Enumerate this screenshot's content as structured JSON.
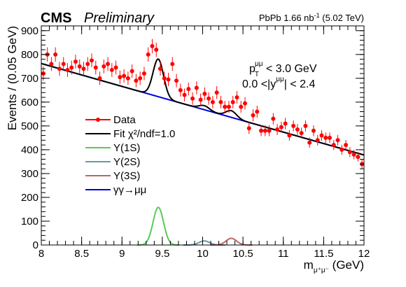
{
  "header": {
    "experiment": "CMS",
    "status": "Preliminary",
    "lumi_prefix": "PbPb 1.66 nb",
    "lumi_exp": "-1",
    "lumi_suffix": " (5.02 TeV)"
  },
  "cuts": {
    "line1_main": "p",
    "line1_sub": "T",
    "line1_sup": "μμ",
    "line1_rest": " < 3.0 GeV",
    "line2_main": "0.0 <|y",
    "line2_sup": "μμ",
    "line2_rest": "| < 2.4"
  },
  "axes": {
    "ylabel": "Events / (0.05 GeV)",
    "xlabel_main": "m",
    "xlabel_sub": "μ⁺μ⁻",
    "xlabel_unit": " (GeV)"
  },
  "legend": [
    {
      "label": "Data",
      "kind": "marker",
      "color": "#ff0000"
    },
    {
      "label": "Fit   χ²/ndf=1.0",
      "kind": "line",
      "color": "#000000"
    },
    {
      "label": "Υ(1S)",
      "kind": "line",
      "color": "#55cc55"
    },
    {
      "label": "Υ(2S)",
      "kind": "line",
      "color": "#6699aa"
    },
    {
      "label": "Υ(3S)",
      "kind": "line",
      "color": "#bb6666"
    },
    {
      "label": "γγ→μμ",
      "kind": "line",
      "color": "#0000dd"
    }
  ],
  "chart_data": {
    "type": "scatter",
    "xlim": [
      8,
      12
    ],
    "ylim": [
      0,
      920
    ],
    "xticks": [
      8,
      8.5,
      9,
      9.5,
      10,
      10.5,
      11,
      11.5,
      12
    ],
    "xtick_labels": [
      "8",
      "8.5",
      "9",
      "9.5",
      "10",
      "10.5",
      "11",
      "11.5",
      "12"
    ],
    "yticks": [
      0,
      100,
      200,
      300,
      400,
      500,
      600,
      700,
      800,
      900
    ],
    "ytick_labels": [
      "0",
      "100",
      "200",
      "300",
      "400",
      "500",
      "600",
      "700",
      "800",
      "900"
    ],
    "data_points": {
      "name": "Data",
      "color": "#ff0000",
      "x": [
        8.025,
        8.075,
        8.125,
        8.175,
        8.225,
        8.275,
        8.325,
        8.375,
        8.425,
        8.475,
        8.525,
        8.575,
        8.625,
        8.675,
        8.725,
        8.775,
        8.825,
        8.875,
        8.925,
        8.975,
        9.025,
        9.075,
        9.125,
        9.175,
        9.225,
        9.275,
        9.325,
        9.375,
        9.425,
        9.475,
        9.525,
        9.575,
        9.625,
        9.675,
        9.725,
        9.775,
        9.825,
        9.875,
        9.925,
        9.975,
        10.025,
        10.075,
        10.125,
        10.175,
        10.225,
        10.275,
        10.325,
        10.375,
        10.425,
        10.475,
        10.525,
        10.575,
        10.625,
        10.675,
        10.725,
        10.775,
        10.825,
        10.875,
        10.925,
        10.975,
        11.025,
        11.075,
        11.125,
        11.175,
        11.225,
        11.275,
        11.325,
        11.375,
        11.425,
        11.475,
        11.525,
        11.575,
        11.625,
        11.675,
        11.725,
        11.775,
        11.825,
        11.875,
        11.925,
        11.975
      ],
      "y": [
        720,
        800,
        760,
        800,
        740,
        760,
        735,
        745,
        770,
        750,
        740,
        760,
        775,
        745,
        700,
        750,
        760,
        735,
        745,
        705,
        710,
        700,
        730,
        690,
        700,
        720,
        800,
        835,
        820,
        740,
        700,
        695,
        760,
        690,
        650,
        630,
        655,
        615,
        660,
        610,
        635,
        615,
        600,
        640,
        600,
        580,
        580,
        600,
        620,
        580,
        595,
        490,
        545,
        560,
        480,
        480,
        480,
        530,
        485,
        495,
        510,
        460,
        500,
        485,
        470,
        500,
        430,
        480,
        440,
        460,
        450,
        450,
        420,
        440,
        400,
        420,
        390,
        380,
        370,
        340
      ],
      "err": [
        30,
        30,
        29,
        30,
        29,
        29,
        29,
        29,
        29,
        29,
        29,
        29,
        29,
        29,
        28,
        29,
        29,
        29,
        29,
        28,
        28,
        28,
        28,
        28,
        28,
        28,
        30,
        30,
        30,
        29,
        28,
        28,
        29,
        28,
        27,
        27,
        27,
        26,
        27,
        26,
        27,
        26,
        26,
        27,
        26,
        25,
        25,
        26,
        26,
        25,
        26,
        24,
        25,
        25,
        23,
        23,
        23,
        24,
        23,
        23,
        24,
        22,
        23,
        23,
        23,
        23,
        22,
        23,
        22,
        22,
        22,
        22,
        21,
        22,
        21,
        21,
        21,
        20,
        20,
        19
      ]
    },
    "fit_model": {
      "background": {
        "name": "γγ→μμ",
        "color": "#0000dd",
        "at_8": 762,
        "at_12": 378
      },
      "peaks": [
        {
          "name": "Υ(1S)",
          "color": "#55cc55",
          "mass": 9.45,
          "sigma": 0.065,
          "height": 158
        },
        {
          "name": "Υ(2S)",
          "color": "#6699aa",
          "mass": 10.02,
          "sigma": 0.065,
          "height": 17
        },
        {
          "name": "Υ(3S)",
          "color": "#bb6666",
          "mass": 10.355,
          "sigma": 0.065,
          "height": 28
        }
      ],
      "total": {
        "name": "Fit",
        "color": "#000000"
      }
    }
  }
}
